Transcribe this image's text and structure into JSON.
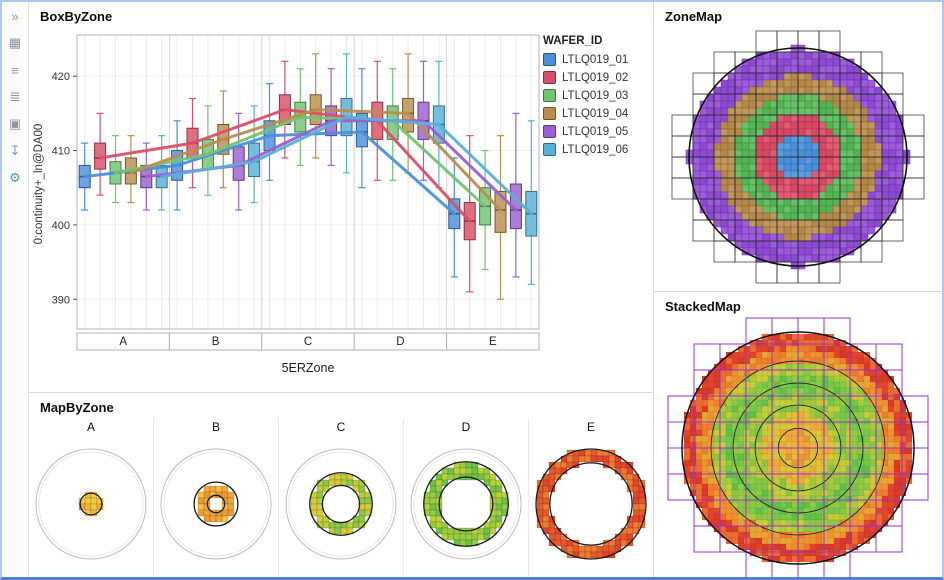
{
  "window": {
    "frame_color": "#a9c9ef",
    "accent_bar_color": "#4d7fd6"
  },
  "sidebar": {
    "icons": [
      {
        "name": "expand-panel-icon",
        "glyph": "»",
        "color": "#8b95a0"
      },
      {
        "name": "dashboard-grid-icon",
        "glyph": "▦",
        "color": "#8b95a0"
      },
      {
        "name": "filter-sliders-icon",
        "glyph": "≡",
        "color": "#8b95a0"
      },
      {
        "name": "column-list-icon",
        "glyph": "≣",
        "color": "#8b95a0"
      },
      {
        "name": "copy-icon",
        "glyph": "▣",
        "color": "#8b95a0"
      },
      {
        "name": "export-download-icon",
        "glyph": "↧",
        "color": "#6b9bd2"
      },
      {
        "name": "settings-gear-icon",
        "glyph": "⚙",
        "color": "#46a0b0"
      }
    ]
  },
  "panels": {
    "box_by_zone": {
      "title": "BoxByZone"
    },
    "zone_map": {
      "title": "ZoneMap"
    },
    "stacked_map": {
      "title": "StackedMap"
    },
    "map_by_zone": {
      "title": "MapByZone"
    }
  },
  "chart_data": [
    {
      "id": "box_by_zone",
      "type": "box",
      "title": "BoxByZone",
      "xlabel": "5ERZone",
      "ylabel": "0:continuity+_ln@DA00",
      "ylim": [
        386,
        425
      ],
      "yticks": [
        390,
        400,
        410,
        420
      ],
      "categories": [
        "A",
        "B",
        "C",
        "D",
        "E"
      ],
      "legend_title": "WAFER_ID",
      "series": [
        {
          "name": "LTLQ019_01",
          "color": "#4a90d9",
          "boxes": [
            [
              402,
              405,
              406.5,
              408,
              411
            ],
            [
              402,
              406,
              408,
              410,
              414
            ],
            [
              406,
              410,
              412,
              414,
              419
            ],
            [
              405,
              410.5,
              412.5,
              415,
              421
            ],
            [
              393,
              399.5,
              401.5,
              403.5,
              409
            ]
          ]
        },
        {
          "name": "LTLQ019_02",
          "color": "#da4f68",
          "boxes": [
            [
              404,
              407.5,
              409,
              411,
              415
            ],
            [
              405,
              409,
              411,
              413,
              417
            ],
            [
              409,
              413.5,
              415.5,
              417.5,
              422
            ],
            [
              406,
              411.5,
              414,
              416.5,
              422
            ],
            [
              391,
              398,
              400.5,
              403,
              412
            ]
          ]
        },
        {
          "name": "LTLQ019_03",
          "color": "#72c372",
          "boxes": [
            [
              403,
              405.5,
              407,
              408.5,
              412
            ],
            [
              404,
              407.5,
              409.5,
              411.5,
              416
            ],
            [
              408,
              412.5,
              414.5,
              416.5,
              421
            ],
            [
              406,
              411.5,
              414,
              416,
              421
            ],
            [
              394,
              400,
              402.5,
              405,
              410
            ]
          ]
        },
        {
          "name": "LTLQ019_04",
          "color": "#b98e4f",
          "boxes": [
            [
              403,
              405.5,
              407,
              409,
              412
            ],
            [
              405,
              409.5,
              411.5,
              413.5,
              418
            ],
            [
              409,
              413.5,
              415.5,
              417.5,
              423
            ],
            [
              407,
              412.5,
              415,
              417,
              423
            ],
            [
              390,
              399,
              402,
              404.5,
              412
            ]
          ]
        },
        {
          "name": "LTLQ019_05",
          "color": "#9a5fd0",
          "boxes": [
            [
              402,
              405,
              406.5,
              408,
              411
            ],
            [
              402,
              406,
              408,
              410.5,
              415
            ],
            [
              408,
              412,
              414,
              416,
              421
            ],
            [
              406,
              411.5,
              414,
              416.5,
              422
            ],
            [
              393,
              399.5,
              402,
              405.5,
              415
            ]
          ]
        },
        {
          "name": "LTLQ019_06",
          "color": "#57b0d6",
          "boxes": [
            [
              402,
              405,
              406.5,
              408,
              412
            ],
            [
              403,
              406.5,
              408.5,
              411,
              416
            ],
            [
              407,
              412,
              414.5,
              417,
              423
            ],
            [
              405,
              411,
              413.5,
              416,
              422
            ],
            [
              392,
              398.5,
              401.5,
              404.5,
              414
            ]
          ]
        }
      ]
    },
    {
      "id": "zone_map",
      "type": "heatmap",
      "title": "ZoneMap",
      "zones": [
        {
          "zone": "A",
          "r0": 0.0,
          "r1": 0.2,
          "fills": [
            "#4a90d9",
            "#5b9ce0"
          ],
          "stroke": "#2e6cb0"
        },
        {
          "zone": "B",
          "r0": 0.2,
          "r1": 0.4,
          "fills": [
            "#d84a64",
            "#e05b73"
          ],
          "stroke": "#a83048"
        },
        {
          "zone": "C",
          "r0": 0.4,
          "r1": 0.58,
          "fills": [
            "#55b455",
            "#68c168"
          ],
          "stroke": "#3a8a3a"
        },
        {
          "zone": "D",
          "r0": 0.58,
          "r1": 0.75,
          "fills": [
            "#b5894a",
            "#c2975b"
          ],
          "stroke": "#876232"
        },
        {
          "zone": "E",
          "r0": 0.75,
          "r1": 1.01,
          "fills": [
            "#8e4ad2",
            "#9c5cdb"
          ],
          "stroke": "#6a30a6"
        }
      ]
    },
    {
      "id": "stacked_map",
      "type": "heatmap",
      "title": "StackedMap",
      "grid_color": "#9632c8",
      "ring_radii": [
        0.17,
        0.37,
        0.56,
        0.75
      ],
      "bands": [
        {
          "r0": 0.0,
          "r1": 0.14,
          "fills": [
            "#f0a83a",
            "#ecb83c",
            "#e89a36"
          ]
        },
        {
          "r0": 0.14,
          "r1": 0.3,
          "fills": [
            "#e2bf3c",
            "#d8c83a",
            "#f0a83a"
          ]
        },
        {
          "r0": 0.3,
          "r1": 0.48,
          "fills": [
            "#a2cc3e",
            "#84c746",
            "#c2cf3c"
          ]
        },
        {
          "r0": 0.48,
          "r1": 0.64,
          "fills": [
            "#5fc04c",
            "#74c84e",
            "#90cc42"
          ]
        },
        {
          "r0": 0.64,
          "r1": 0.75,
          "fills": [
            "#a6cf3e",
            "#cccb3a",
            "#8cc848"
          ]
        },
        {
          "r0": 0.75,
          "r1": 0.86,
          "fills": [
            "#f09230",
            "#ec7e2e",
            "#e8a636"
          ]
        },
        {
          "r0": 0.86,
          "r1": 1.01,
          "fills": [
            "#e2452e",
            "#d93a2a",
            "#ee6c30"
          ]
        }
      ]
    },
    {
      "id": "map_by_zone",
      "type": "heatmap",
      "title": "MapByZone",
      "categories": [
        "A",
        "B",
        "C",
        "D",
        "E"
      ],
      "rings": [
        {
          "zone": "A",
          "r0": 0.0,
          "r1": 0.18,
          "fills": [
            "#f2a73c",
            "#efb83e",
            "#f4cc3e"
          ]
        },
        {
          "zone": "B",
          "r0": 0.14,
          "r1": 0.38,
          "fills": [
            "#f2a73c",
            "#f4c23e",
            "#eb9c3a"
          ]
        },
        {
          "zone": "C",
          "r0": 0.32,
          "r1": 0.55,
          "fills": [
            "#b6cf3e",
            "#8cc746",
            "#d4ce3c"
          ]
        },
        {
          "zone": "D",
          "r0": 0.47,
          "r1": 0.75,
          "fills": [
            "#6cc24a",
            "#96ce42",
            "#bad23e"
          ]
        },
        {
          "zone": "E",
          "r0": 0.73,
          "r1": 1.01,
          "fills": [
            "#e4432e",
            "#ef7a30",
            "#e7582e"
          ]
        }
      ]
    }
  ]
}
